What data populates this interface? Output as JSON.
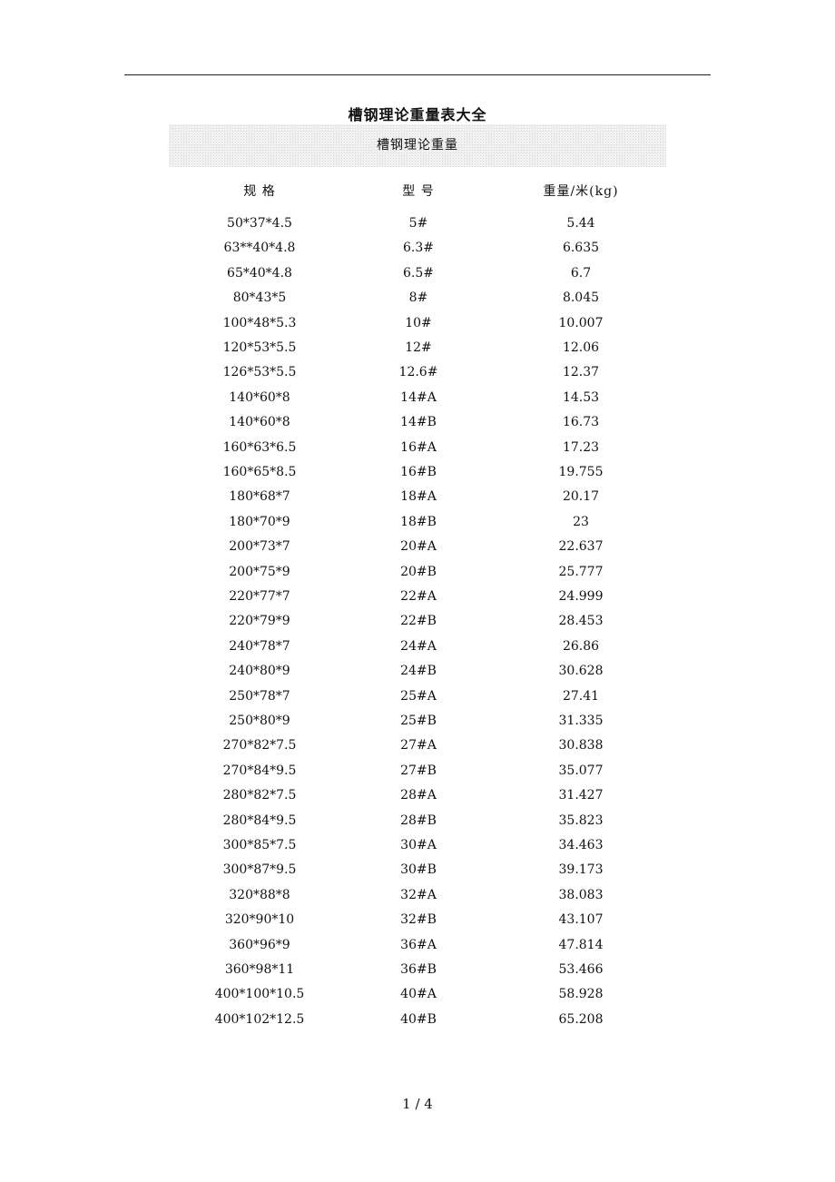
{
  "document": {
    "title": "槽钢理论重量表大全",
    "table_caption": "槽钢理论重量",
    "columns": [
      "规 格",
      "型 号",
      "重量/米(kg)"
    ],
    "rows": [
      [
        "50*37*4.5",
        "5#",
        "5.44"
      ],
      [
        "63**40*4.8",
        "6.3#",
        "6.635"
      ],
      [
        "65*40*4.8",
        "6.5#",
        "6.7"
      ],
      [
        "80*43*5",
        "8#",
        "8.045"
      ],
      [
        "100*48*5.3",
        "10#",
        "10.007"
      ],
      [
        "120*53*5.5",
        "12#",
        "12.06"
      ],
      [
        "126*53*5.5",
        "12.6#",
        "12.37"
      ],
      [
        "140*60*8",
        "14#A",
        "14.53"
      ],
      [
        "140*60*8",
        "14#B",
        "16.73"
      ],
      [
        "160*63*6.5",
        "16#A",
        "17.23"
      ],
      [
        "160*65*8.5",
        "16#B",
        "19.755"
      ],
      [
        "180*68*7",
        "18#A",
        "20.17"
      ],
      [
        "180*70*9",
        "18#B",
        "23"
      ],
      [
        "200*73*7",
        "20#A",
        "22.637"
      ],
      [
        "200*75*9",
        "20#B",
        "25.777"
      ],
      [
        "220*77*7",
        "22#A",
        "24.999"
      ],
      [
        "220*79*9",
        "22#B",
        "28.453"
      ],
      [
        "240*78*7",
        "24#A",
        "26.86"
      ],
      [
        "240*80*9",
        "24#B",
        "30.628"
      ],
      [
        "250*78*7",
        "25#A",
        "27.41"
      ],
      [
        "250*80*9",
        "25#B",
        "31.335"
      ],
      [
        "270*82*7.5",
        "27#A",
        "30.838"
      ],
      [
        "270*84*9.5",
        "27#B",
        "35.077"
      ],
      [
        "280*82*7.5",
        "28#A",
        "31.427"
      ],
      [
        "280*84*9.5",
        "28#B",
        "35.823"
      ],
      [
        "300*85*7.5",
        "30#A",
        "34.463"
      ],
      [
        "300*87*9.5",
        "30#B",
        "39.173"
      ],
      [
        "320*88*8",
        "32#A",
        "38.083"
      ],
      [
        "320*90*10",
        "32#B",
        "43.107"
      ],
      [
        "360*96*9",
        "36#A",
        "47.814"
      ],
      [
        "360*98*11",
        "36#B",
        "53.466"
      ],
      [
        "400*100*10.5",
        "40#A",
        "58.928"
      ],
      [
        "400*102*12.5",
        "40#B",
        "65.208"
      ]
    ],
    "page_indicator": "1 / 4"
  }
}
